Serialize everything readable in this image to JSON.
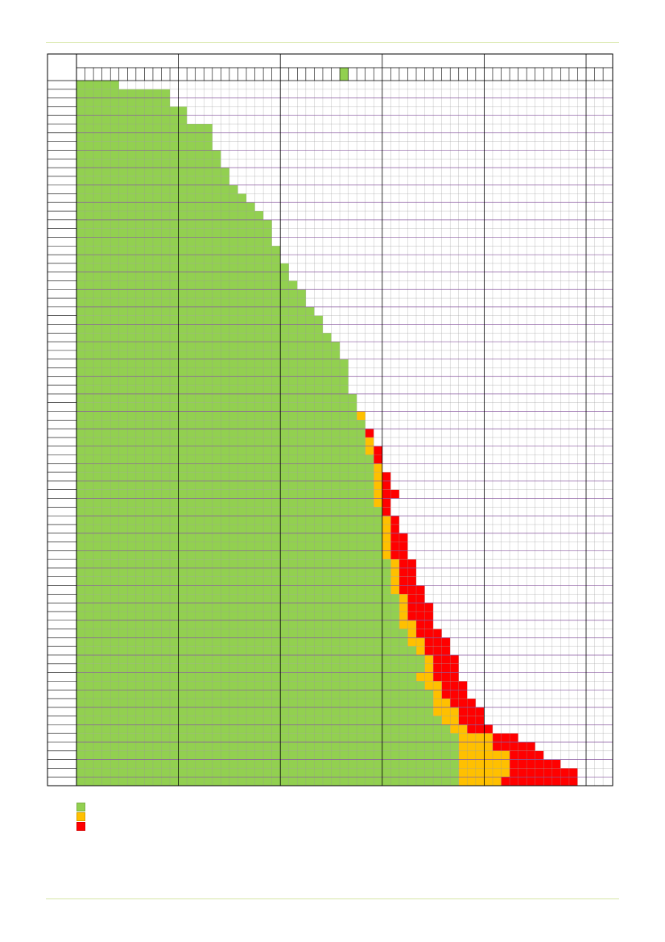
{
  "page": {
    "colors": {
      "rule": "#d6e6a6",
      "grid_major": "#000000",
      "grid_minor": "#999999",
      "row_separator": "#8a5aa0",
      "green": "#92d050",
      "amber": "#ffc000",
      "red": "#ff0000"
    }
  },
  "grid": {
    "header_marker_column": 31,
    "rows": [
      [
        5,
        0,
        0
      ],
      [
        11,
        0,
        0
      ],
      [
        11,
        0,
        0
      ],
      [
        13,
        0,
        0
      ],
      [
        13,
        0,
        0
      ],
      [
        16,
        0,
        0
      ],
      [
        16,
        0,
        0
      ],
      [
        16,
        0,
        0
      ],
      [
        17,
        0,
        0
      ],
      [
        17,
        0,
        0
      ],
      [
        18,
        0,
        0
      ],
      [
        18,
        0,
        0
      ],
      [
        19,
        0,
        0
      ],
      [
        20,
        0,
        0
      ],
      [
        21,
        0,
        0
      ],
      [
        22,
        0,
        0
      ],
      [
        23,
        0,
        0
      ],
      [
        23,
        0,
        0
      ],
      [
        23,
        0,
        0
      ],
      [
        24,
        0,
        0
      ],
      [
        24,
        0,
        0
      ],
      [
        25,
        0,
        0
      ],
      [
        25,
        0,
        0
      ],
      [
        26,
        0,
        0
      ],
      [
        27,
        0,
        0
      ],
      [
        27,
        0,
        0
      ],
      [
        28,
        0,
        0
      ],
      [
        29,
        0,
        0
      ],
      [
        29,
        0,
        0
      ],
      [
        30,
        0,
        0
      ],
      [
        31,
        0,
        0
      ],
      [
        31,
        0,
        0
      ],
      [
        32,
        0,
        0
      ],
      [
        32,
        0,
        0
      ],
      [
        32,
        0,
        0
      ],
      [
        32,
        0,
        0
      ],
      [
        33,
        0,
        0
      ],
      [
        33,
        0,
        0
      ],
      [
        33,
        1,
        0
      ],
      [
        34,
        0,
        0
      ],
      [
        34,
        0,
        1
      ],
      [
        34,
        1,
        0
      ],
      [
        34,
        1,
        1
      ],
      [
        35,
        0,
        1
      ],
      [
        35,
        1,
        0
      ],
      [
        35,
        1,
        1
      ],
      [
        35,
        1,
        1
      ],
      [
        35,
        1,
        2
      ],
      [
        35,
        1,
        1
      ],
      [
        36,
        0,
        1
      ],
      [
        36,
        1,
        1
      ],
      [
        36,
        1,
        1
      ],
      [
        36,
        1,
        2
      ],
      [
        36,
        1,
        2
      ],
      [
        36,
        1,
        2
      ],
      [
        37,
        1,
        2
      ],
      [
        37,
        1,
        2
      ],
      [
        37,
        1,
        2
      ],
      [
        37,
        1,
        3
      ],
      [
        38,
        1,
        2
      ],
      [
        38,
        1,
        3
      ],
      [
        38,
        1,
        3
      ],
      [
        38,
        2,
        2
      ],
      [
        39,
        1,
        3
      ],
      [
        39,
        2,
        3
      ],
      [
        40,
        1,
        3
      ],
      [
        41,
        1,
        3
      ],
      [
        41,
        1,
        3
      ],
      [
        40,
        2,
        3
      ],
      [
        41,
        2,
        3
      ],
      [
        42,
        1,
        3
      ],
      [
        42,
        2,
        3
      ],
      [
        42,
        3,
        3
      ],
      [
        43,
        2,
        3
      ],
      [
        44,
        2,
        3
      ],
      [
        45,
        4,
        3
      ],
      [
        45,
        4,
        5
      ],
      [
        45,
        6,
        4
      ],
      [
        45,
        6,
        6
      ],
      [
        45,
        6,
        8
      ],
      [
        45,
        5,
        9
      ]
    ]
  }
}
